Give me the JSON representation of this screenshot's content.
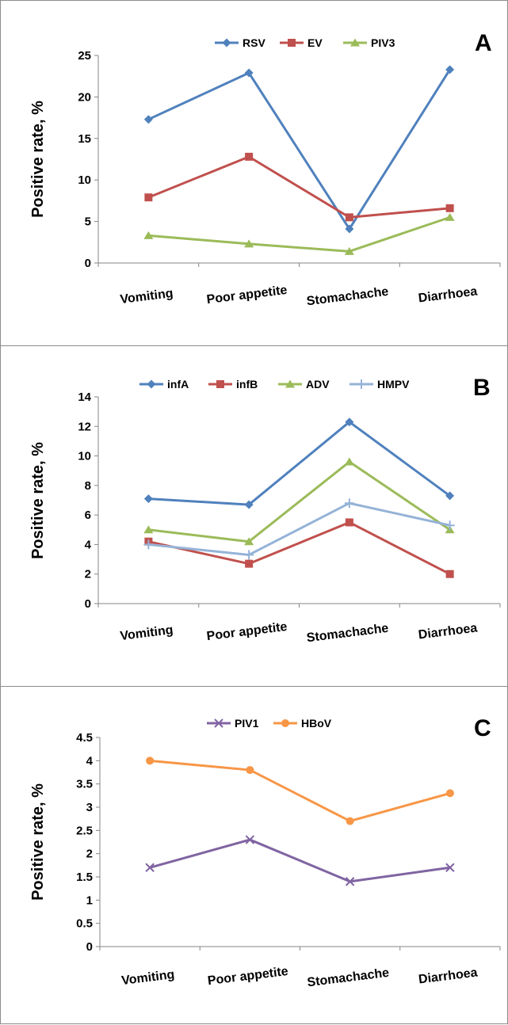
{
  "chart_data": [
    {
      "type": "line",
      "panel_label": "A",
      "categories": [
        "Vomiting",
        "Poor appetite",
        "Stomachache",
        "Diarrhoea"
      ],
      "ylabel": "Positive rate, %",
      "ylim": [
        0,
        25
      ],
      "yticks": [
        "0",
        "5",
        "10",
        "15",
        "20",
        "25"
      ],
      "legend_position": "top",
      "series": [
        {
          "name": "RSV",
          "values": [
            17.3,
            22.9,
            4.1,
            23.3
          ],
          "color": "#4f81bd",
          "marker": "diamond"
        },
        {
          "name": "EV",
          "values": [
            7.9,
            12.8,
            5.5,
            6.6
          ],
          "color": "#c0504d",
          "marker": "square"
        },
        {
          "name": "PIV3",
          "values": [
            3.3,
            2.3,
            1.4,
            5.5
          ],
          "color": "#9bbb59",
          "marker": "triangle"
        }
      ]
    },
    {
      "type": "line",
      "panel_label": "B",
      "categories": [
        "Vomiting",
        "Poor appetite",
        "Stomachache",
        "Diarrhoea"
      ],
      "ylabel": "Positive rate, %",
      "ylim": [
        0,
        14
      ],
      "yticks": [
        "0",
        "2",
        "4",
        "6",
        "8",
        "10",
        "12",
        "14"
      ],
      "legend_position": "top",
      "series": [
        {
          "name": "infA",
          "values": [
            7.1,
            6.7,
            12.3,
            7.3
          ],
          "color": "#4f81bd",
          "marker": "diamond"
        },
        {
          "name": "infB",
          "values": [
            4.2,
            2.7,
            5.5,
            2.0
          ],
          "color": "#c0504d",
          "marker": "square"
        },
        {
          "name": "ADV",
          "values": [
            5.0,
            4.2,
            9.6,
            5.0
          ],
          "color": "#9bbb59",
          "marker": "triangle"
        },
        {
          "name": "HMPV",
          "values": [
            4.0,
            3.3,
            6.8,
            5.3
          ],
          "color": "#95b3d7",
          "marker": "plus"
        }
      ]
    },
    {
      "type": "line",
      "panel_label": "C",
      "categories": [
        "Vomiting",
        "Poor appetite",
        "Stomachache",
        "Diarrhoea"
      ],
      "ylabel": "Positive rate, %",
      "ylim": [
        0,
        4.5
      ],
      "yticks": [
        "0",
        "0.5",
        "1",
        "1.5",
        "2",
        "2.5",
        "3",
        "3.5",
        "4",
        "4.5"
      ],
      "legend_position": "top",
      "series": [
        {
          "name": "PIV1",
          "values": [
            1.7,
            2.3,
            1.4,
            1.7
          ],
          "color": "#8064a2",
          "marker": "x"
        },
        {
          "name": "HBoV",
          "values": [
            4.0,
            3.8,
            2.7,
            3.3
          ],
          "color": "#f79646",
          "marker": "circle"
        }
      ]
    }
  ]
}
